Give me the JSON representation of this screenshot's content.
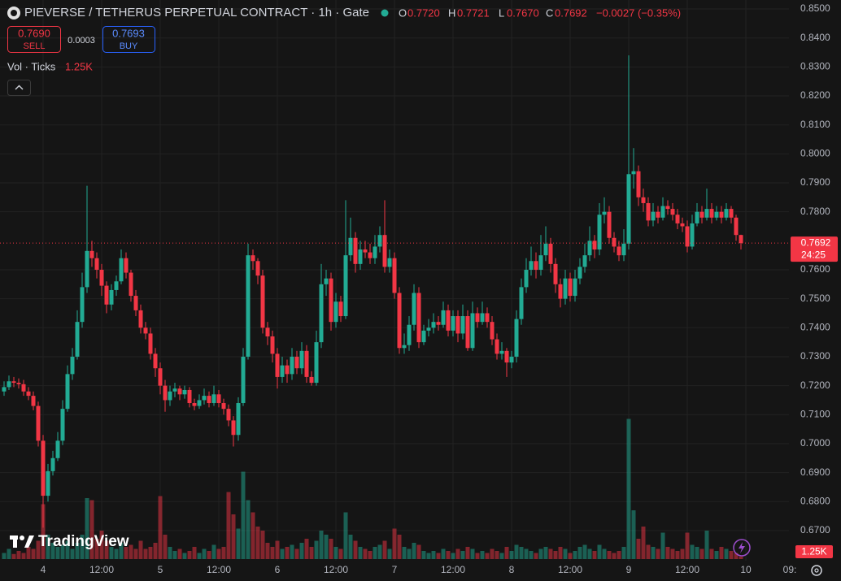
{
  "chart_data": {
    "type": "candlestick",
    "title": "PIEVERSE / TETHERUS PERPETUAL CONTRACT · 1h · Gate",
    "legend": [
      {
        "key": "O",
        "value": "0.7720"
      },
      {
        "key": "H",
        "value": "0.7721"
      },
      {
        "key": "L",
        "value": "0.7670"
      },
      {
        "key": "C",
        "value": "0.7692"
      }
    ],
    "change": "−0.0027 (−0.35%)",
    "sell": {
      "price": "0.7690",
      "label": "SELL"
    },
    "spread": "0.0003",
    "buy": {
      "price": "0.7693",
      "label": "BUY"
    },
    "volume_legend": {
      "label": "Vol · Ticks",
      "value": "1.25K"
    },
    "last_price": {
      "value": 0.7692,
      "label": "0.7692"
    },
    "countdown": "24:25",
    "brand": "TradingView",
    "up_color": "#22ab94",
    "down_color": "#f23645",
    "grid": true,
    "xlim": [
      -0.833,
      160.833
    ],
    "xticks": [
      {
        "value": 8,
        "label": "4"
      },
      {
        "value": 20,
        "label": "12:00"
      },
      {
        "value": 32,
        "label": "5"
      },
      {
        "value": 44,
        "label": "12:00"
      },
      {
        "value": 56,
        "label": "6"
      },
      {
        "value": 68,
        "label": "12:00"
      },
      {
        "value": 80,
        "label": "7"
      },
      {
        "value": 92,
        "label": "12:00"
      },
      {
        "value": 104,
        "label": "8"
      },
      {
        "value": 116,
        "label": "12:00"
      },
      {
        "value": 128,
        "label": "9"
      },
      {
        "value": 140,
        "label": "12:00"
      },
      {
        "value": 152,
        "label": "10"
      },
      {
        "value": 161,
        "label": "09:"
      }
    ],
    "ylim": [
      0.6596,
      0.8531
    ],
    "yticks": [
      {
        "value": 0.85,
        "label": "0.8500"
      },
      {
        "value": 0.84,
        "label": "0.8400"
      },
      {
        "value": 0.83,
        "label": "0.8300"
      },
      {
        "value": 0.82,
        "label": "0.8200"
      },
      {
        "value": 0.81,
        "label": "0.8100"
      },
      {
        "value": 0.8,
        "label": "0.8000"
      },
      {
        "value": 0.79,
        "label": "0.7900"
      },
      {
        "value": 0.78,
        "label": "0.7800"
      },
      {
        "value": 0.76,
        "label": "0.7600"
      },
      {
        "value": 0.75,
        "label": "0.7500"
      },
      {
        "value": 0.74,
        "label": "0.7400"
      },
      {
        "value": 0.73,
        "label": "0.7300"
      },
      {
        "value": 0.72,
        "label": "0.7200"
      },
      {
        "value": 0.71,
        "label": "0.7100"
      },
      {
        "value": 0.7,
        "label": "0.7000"
      },
      {
        "value": 0.69,
        "label": "0.6900"
      },
      {
        "value": 0.68,
        "label": "0.6800"
      },
      {
        "value": 0.67,
        "label": "0.6700"
      }
    ],
    "volume_lim": [
      0,
      100000
    ],
    "open": [
      0.718,
      0.7195,
      0.7215,
      0.721,
      0.7205,
      0.718,
      0.7165,
      0.713,
      0.701,
      0.682,
      0.6905,
      0.695,
      0.701,
      0.712,
      0.724,
      0.73,
      0.742,
      0.754,
      0.7665,
      0.764,
      0.76,
      0.7545,
      0.748,
      0.753,
      0.756,
      0.764,
      0.759,
      0.751,
      0.746,
      0.74,
      0.738,
      0.731,
      0.726,
      0.72,
      0.715,
      0.718,
      0.719,
      0.717,
      0.7185,
      0.714,
      0.713,
      0.715,
      0.7165,
      0.714,
      0.717,
      0.714,
      0.712,
      0.708,
      0.703,
      0.714,
      0.73,
      0.765,
      0.763,
      0.758,
      0.74,
      0.737,
      0.731,
      0.723,
      0.727,
      0.724,
      0.73,
      0.726,
      0.732,
      0.723,
      0.721,
      0.735,
      0.755,
      0.757,
      0.742,
      0.749,
      0.744,
      0.765,
      0.771,
      0.762,
      0.767,
      0.766,
      0.764,
      0.768,
      0.772,
      0.761,
      0.764,
      0.752,
      0.733,
      0.734,
      0.741,
      0.752,
      0.735,
      0.739,
      0.74,
      0.742,
      0.741,
      0.746,
      0.739,
      0.744,
      0.738,
      0.744,
      0.733,
      0.745,
      0.742,
      0.745,
      0.742,
      0.736,
      0.731,
      0.732,
      0.728,
      0.73,
      0.743,
      0.754,
      0.76,
      0.763,
      0.76,
      0.765,
      0.769,
      0.762,
      0.755,
      0.75,
      0.757,
      0.751,
      0.757,
      0.761,
      0.765,
      0.77,
      0.767,
      0.779,
      0.78,
      0.771,
      0.768,
      0.765,
      0.769,
      0.793,
      0.794,
      0.785,
      0.783,
      0.777,
      0.78,
      0.778,
      0.782,
      0.781,
      0.779,
      0.776,
      0.775,
      0.768,
      0.776,
      0.78,
      0.778,
      0.781,
      0.778,
      0.78,
      0.778,
      0.781,
      0.778,
      0.772
    ],
    "high": [
      0.7215,
      0.7235,
      0.723,
      0.7225,
      0.722,
      0.7195,
      0.718,
      0.7145,
      0.703,
      0.693,
      0.6975,
      0.704,
      0.715,
      0.727,
      0.733,
      0.746,
      0.759,
      0.789,
      0.77,
      0.766,
      0.762,
      0.756,
      0.755,
      0.758,
      0.767,
      0.766,
      0.76,
      0.753,
      0.748,
      0.742,
      0.74,
      0.733,
      0.728,
      0.722,
      0.72,
      0.721,
      0.72,
      0.72,
      0.7195,
      0.7155,
      0.717,
      0.719,
      0.718,
      0.72,
      0.7185,
      0.7155,
      0.7135,
      0.7095,
      0.716,
      0.733,
      0.769,
      0.767,
      0.764,
      0.76,
      0.742,
      0.739,
      0.733,
      0.73,
      0.729,
      0.733,
      0.732,
      0.735,
      0.734,
      0.725,
      0.739,
      0.762,
      0.76,
      0.759,
      0.752,
      0.751,
      0.784,
      0.778,
      0.773,
      0.77,
      0.77,
      0.769,
      0.772,
      0.775,
      0.784,
      0.767,
      0.766,
      0.754,
      0.738,
      0.744,
      0.755,
      0.754,
      0.741,
      0.743,
      0.745,
      0.744,
      0.749,
      0.748,
      0.746,
      0.746,
      0.748,
      0.746,
      0.749,
      0.747,
      0.749,
      0.747,
      0.744,
      0.738,
      0.735,
      0.733,
      0.732,
      0.746,
      0.757,
      0.764,
      0.768,
      0.766,
      0.772,
      0.775,
      0.771,
      0.764,
      0.757,
      0.76,
      0.759,
      0.76,
      0.764,
      0.769,
      0.775,
      0.772,
      0.783,
      0.785,
      0.782,
      0.773,
      0.77,
      0.774,
      0.834,
      0.802,
      0.796,
      0.788,
      0.785,
      0.783,
      0.782,
      0.785,
      0.784,
      0.783,
      0.781,
      0.778,
      0.777,
      0.779,
      0.783,
      0.782,
      0.788,
      0.783,
      0.782,
      0.782,
      0.783,
      0.782,
      0.779,
      0.7721
    ],
    "low": [
      0.7165,
      0.7185,
      0.7195,
      0.719,
      0.7165,
      0.715,
      0.7115,
      0.699,
      0.671,
      0.68,
      0.689,
      0.694,
      0.6995,
      0.711,
      0.722,
      0.729,
      0.74,
      0.752,
      0.761,
      0.757,
      0.751,
      0.745,
      0.746,
      0.751,
      0.755,
      0.757,
      0.749,
      0.744,
      0.738,
      0.736,
      0.729,
      0.723,
      0.717,
      0.711,
      0.713,
      0.716,
      0.715,
      0.7155,
      0.7125,
      0.7115,
      0.712,
      0.7135,
      0.7125,
      0.713,
      0.7125,
      0.71,
      0.706,
      0.699,
      0.701,
      0.713,
      0.729,
      0.76,
      0.755,
      0.738,
      0.734,
      0.728,
      0.719,
      0.721,
      0.721,
      0.722,
      0.724,
      0.724,
      0.721,
      0.72,
      0.72,
      0.733,
      0.751,
      0.739,
      0.74,
      0.742,
      0.743,
      0.763,
      0.759,
      0.76,
      0.764,
      0.762,
      0.762,
      0.766,
      0.759,
      0.759,
      0.75,
      0.731,
      0.731,
      0.732,
      0.739,
      0.733,
      0.734,
      0.737,
      0.738,
      0.739,
      0.74,
      0.737,
      0.737,
      0.735,
      0.736,
      0.732,
      0.732,
      0.74,
      0.741,
      0.74,
      0.734,
      0.729,
      0.729,
      0.723,
      0.726,
      0.728,
      0.741,
      0.752,
      0.758,
      0.757,
      0.758,
      0.763,
      0.759,
      0.752,
      0.747,
      0.748,
      0.749,
      0.749,
      0.755,
      0.759,
      0.763,
      0.764,
      0.765,
      0.776,
      0.769,
      0.766,
      0.763,
      0.763,
      0.767,
      0.788,
      0.782,
      0.78,
      0.775,
      0.775,
      0.776,
      0.777,
      0.779,
      0.777,
      0.774,
      0.773,
      0.766,
      0.767,
      0.775,
      0.776,
      0.777,
      0.776,
      0.777,
      0.776,
      0.777,
      0.776,
      0.77,
      0.767
    ],
    "close": [
      0.7195,
      0.7215,
      0.721,
      0.7205,
      0.718,
      0.7165,
      0.713,
      0.701,
      0.682,
      0.6905,
      0.695,
      0.701,
      0.712,
      0.724,
      0.73,
      0.742,
      0.754,
      0.7665,
      0.764,
      0.76,
      0.7545,
      0.748,
      0.753,
      0.756,
      0.764,
      0.759,
      0.751,
      0.746,
      0.74,
      0.738,
      0.731,
      0.726,
      0.72,
      0.715,
      0.718,
      0.719,
      0.717,
      0.7185,
      0.714,
      0.713,
      0.715,
      0.7165,
      0.714,
      0.717,
      0.714,
      0.712,
      0.708,
      0.703,
      0.714,
      0.73,
      0.765,
      0.763,
      0.758,
      0.74,
      0.737,
      0.731,
      0.723,
      0.727,
      0.724,
      0.73,
      0.726,
      0.732,
      0.723,
      0.721,
      0.735,
      0.755,
      0.757,
      0.742,
      0.749,
      0.744,
      0.765,
      0.771,
      0.762,
      0.767,
      0.766,
      0.764,
      0.768,
      0.772,
      0.761,
      0.764,
      0.752,
      0.733,
      0.734,
      0.741,
      0.752,
      0.735,
      0.739,
      0.74,
      0.742,
      0.741,
      0.746,
      0.739,
      0.744,
      0.738,
      0.744,
      0.733,
      0.745,
      0.742,
      0.745,
      0.742,
      0.736,
      0.731,
      0.732,
      0.728,
      0.73,
      0.743,
      0.754,
      0.76,
      0.763,
      0.76,
      0.765,
      0.769,
      0.762,
      0.755,
      0.75,
      0.757,
      0.751,
      0.757,
      0.761,
      0.765,
      0.77,
      0.767,
      0.779,
      0.78,
      0.771,
      0.768,
      0.765,
      0.769,
      0.793,
      0.794,
      0.785,
      0.783,
      0.777,
      0.78,
      0.778,
      0.782,
      0.781,
      0.779,
      0.776,
      0.775,
      0.768,
      0.776,
      0.78,
      0.778,
      0.781,
      0.778,
      0.78,
      0.778,
      0.781,
      0.778,
      0.772,
      0.7692
    ],
    "volume": [
      3000,
      5000,
      2500,
      4000,
      3000,
      6000,
      5000,
      9000,
      27000,
      12000,
      8000,
      6000,
      7000,
      9000,
      5000,
      8000,
      12000,
      30000,
      29000,
      10000,
      14000,
      9000,
      6000,
      5000,
      8000,
      6000,
      7000,
      5000,
      9000,
      5000,
      6000,
      8000,
      31000,
      12000,
      6000,
      4000,
      5000,
      3000,
      4000,
      6000,
      3000,
      5000,
      4000,
      7000,
      5000,
      6000,
      33000,
      22000,
      15000,
      43000,
      29000,
      23000,
      16000,
      14000,
      8000,
      6000,
      9000,
      5000,
      6000,
      7000,
      5000,
      8000,
      10000,
      6000,
      9000,
      14000,
      12000,
      10000,
      6000,
      5000,
      23000,
      12000,
      9000,
      6000,
      5000,
      4000,
      6000,
      7000,
      9000,
      5000,
      15000,
      12000,
      6000,
      5000,
      8000,
      7000,
      4000,
      3000,
      4000,
      3000,
      5000,
      4000,
      3000,
      5000,
      4000,
      6000,
      5000,
      3000,
      4000,
      3000,
      5000,
      4000,
      3000,
      6000,
      4000,
      7000,
      6000,
      5000,
      4000,
      3000,
      5000,
      6000,
      5000,
      4000,
      6000,
      5000,
      3000,
      4000,
      6000,
      7000,
      5000,
      4000,
      7000,
      5000,
      4000,
      3000,
      4000,
      6000,
      69000,
      24000,
      10000,
      16000,
      7000,
      6000,
      5000,
      13000,
      6000,
      5000,
      4000,
      5000,
      13000,
      7000,
      6000,
      5000,
      14000,
      5000,
      4000,
      6000,
      5000,
      4000,
      3000,
      1250
    ]
  }
}
